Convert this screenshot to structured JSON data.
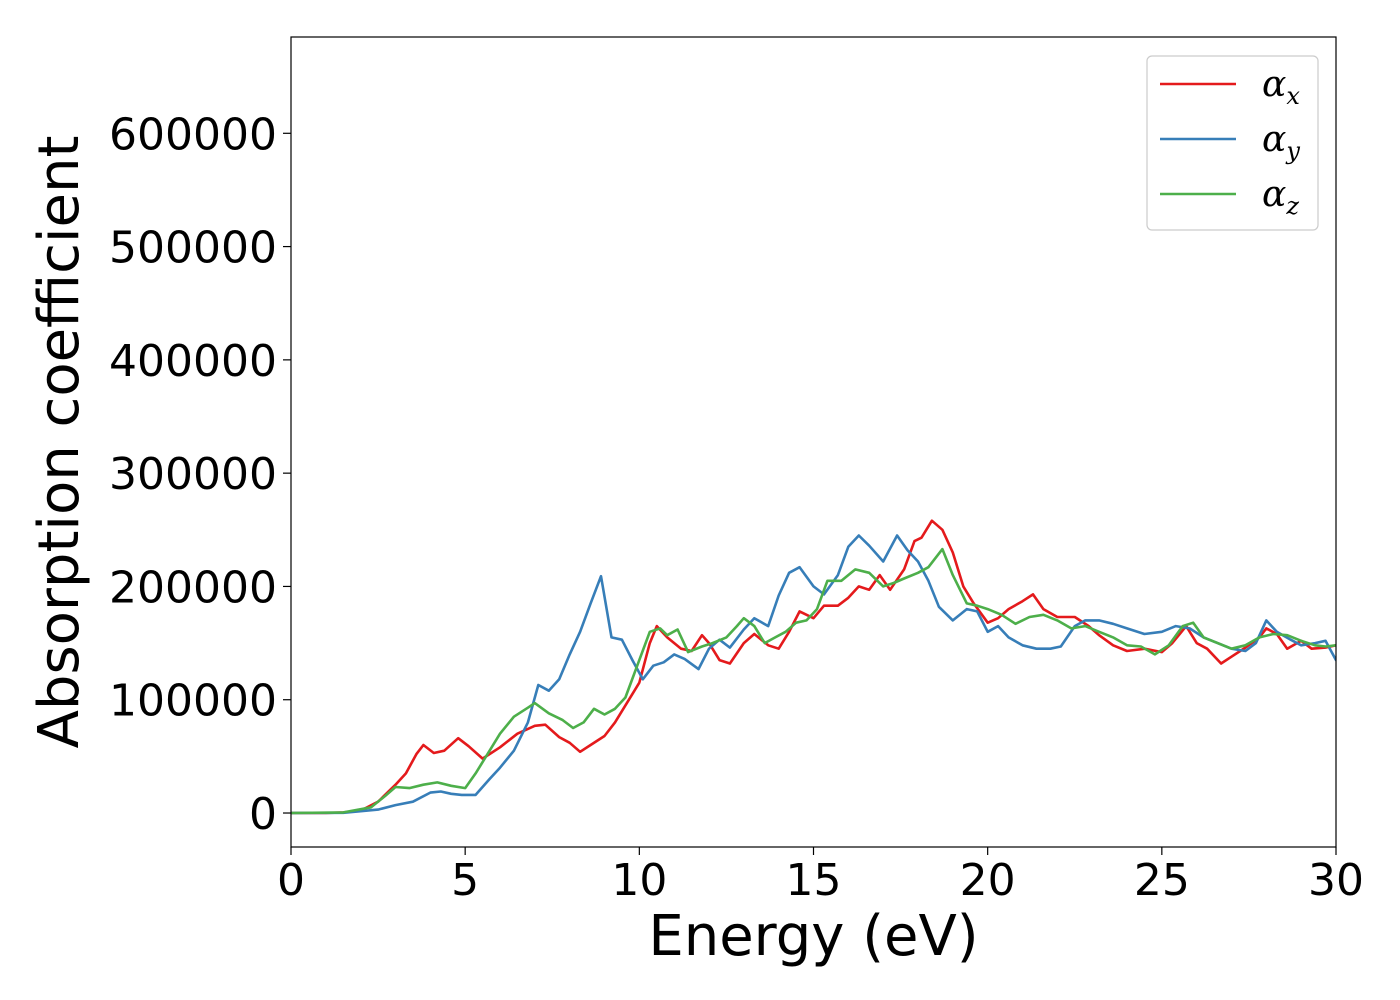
{
  "chart_data": {
    "type": "line",
    "xlabel": "Energy (eV)",
    "ylabel": "Absorption coefficient",
    "xlim": [
      0,
      30
    ],
    "ylim": [
      -30000,
      685000
    ],
    "xticks": [
      0,
      5,
      10,
      15,
      20,
      25,
      30
    ],
    "xtick_labels": [
      "0",
      "5",
      "10",
      "15",
      "20",
      "25",
      "30"
    ],
    "yticks": [
      0,
      100000,
      200000,
      300000,
      400000,
      500000,
      600000
    ],
    "ytick_labels": [
      "0",
      "100000",
      "200000",
      "300000",
      "400000",
      "500000",
      "600000"
    ],
    "grid": false,
    "legend_position": "top-right",
    "series": [
      {
        "name": "αx",
        "symbol": "α",
        "subscript": "x",
        "color": "#e41a1c",
        "points": [
          [
            0,
            0
          ],
          [
            1,
            0
          ],
          [
            1.5,
            500
          ],
          [
            2,
            2000
          ],
          [
            2.5,
            10000
          ],
          [
            3,
            25000
          ],
          [
            3.3,
            35000
          ],
          [
            3.6,
            52000
          ],
          [
            3.8,
            60000
          ],
          [
            4.1,
            53000
          ],
          [
            4.4,
            55000
          ],
          [
            4.8,
            66000
          ],
          [
            5.1,
            59000
          ],
          [
            5.5,
            48000
          ],
          [
            6,
            58000
          ],
          [
            6.5,
            70000
          ],
          [
            7,
            77000
          ],
          [
            7.3,
            78000
          ],
          [
            7.7,
            67000
          ],
          [
            8,
            62000
          ],
          [
            8.3,
            54000
          ],
          [
            8.6,
            60000
          ],
          [
            9,
            68000
          ],
          [
            9.3,
            80000
          ],
          [
            9.6,
            95000
          ],
          [
            10,
            115000
          ],
          [
            10.3,
            150000
          ],
          [
            10.5,
            165000
          ],
          [
            10.8,
            155000
          ],
          [
            11.2,
            145000
          ],
          [
            11.5,
            143000
          ],
          [
            11.8,
            157000
          ],
          [
            12,
            150000
          ],
          [
            12.3,
            135000
          ],
          [
            12.6,
            132000
          ],
          [
            13,
            150000
          ],
          [
            13.3,
            158000
          ],
          [
            13.7,
            148000
          ],
          [
            14,
            145000
          ],
          [
            14.3,
            160000
          ],
          [
            14.6,
            178000
          ],
          [
            15,
            172000
          ],
          [
            15.3,
            183000
          ],
          [
            15.7,
            183000
          ],
          [
            16,
            190000
          ],
          [
            16.3,
            200000
          ],
          [
            16.6,
            197000
          ],
          [
            16.9,
            210000
          ],
          [
            17.2,
            197000
          ],
          [
            17.6,
            215000
          ],
          [
            17.9,
            240000
          ],
          [
            18.1,
            243000
          ],
          [
            18.4,
            258000
          ],
          [
            18.7,
            250000
          ],
          [
            19,
            230000
          ],
          [
            19.3,
            200000
          ],
          [
            19.6,
            185000
          ],
          [
            20,
            168000
          ],
          [
            20.3,
            172000
          ],
          [
            20.6,
            180000
          ],
          [
            21,
            187000
          ],
          [
            21.3,
            193000
          ],
          [
            21.6,
            180000
          ],
          [
            22,
            173000
          ],
          [
            22.5,
            173000
          ],
          [
            22.9,
            165000
          ],
          [
            23.2,
            157000
          ],
          [
            23.6,
            148000
          ],
          [
            24,
            143000
          ],
          [
            24.5,
            145000
          ],
          [
            25,
            142000
          ],
          [
            25.3,
            150000
          ],
          [
            25.7,
            165000
          ],
          [
            26,
            150000
          ],
          [
            26.3,
            145000
          ],
          [
            26.7,
            132000
          ],
          [
            27,
            138000
          ],
          [
            27.4,
            146000
          ],
          [
            27.8,
            155000
          ],
          [
            28,
            163000
          ],
          [
            28.3,
            158000
          ],
          [
            28.6,
            145000
          ],
          [
            29,
            152000
          ],
          [
            29.3,
            145000
          ],
          [
            29.7,
            146000
          ],
          [
            30,
            148000
          ]
        ]
      },
      {
        "name": "αy",
        "symbol": "α",
        "subscript": "y",
        "color": "#377eb8",
        "points": [
          [
            0,
            0
          ],
          [
            1.5,
            200
          ],
          [
            2.5,
            3000
          ],
          [
            3,
            7000
          ],
          [
            3.5,
            10000
          ],
          [
            4,
            18000
          ],
          [
            4.3,
            19000
          ],
          [
            4.6,
            17000
          ],
          [
            4.9,
            16000
          ],
          [
            5.3,
            16000
          ],
          [
            5.7,
            30000
          ],
          [
            6,
            40000
          ],
          [
            6.4,
            55000
          ],
          [
            6.8,
            80000
          ],
          [
            7.1,
            113000
          ],
          [
            7.4,
            108000
          ],
          [
            7.7,
            118000
          ],
          [
            8,
            140000
          ],
          [
            8.3,
            160000
          ],
          [
            8.6,
            185000
          ],
          [
            8.9,
            209000
          ],
          [
            9.2,
            155000
          ],
          [
            9.5,
            153000
          ],
          [
            9.8,
            135000
          ],
          [
            10.1,
            118000
          ],
          [
            10.4,
            130000
          ],
          [
            10.7,
            133000
          ],
          [
            11,
            140000
          ],
          [
            11.3,
            136000
          ],
          [
            11.7,
            127000
          ],
          [
            12,
            145000
          ],
          [
            12.3,
            153000
          ],
          [
            12.6,
            146000
          ],
          [
            13,
            162000
          ],
          [
            13.3,
            172000
          ],
          [
            13.7,
            165000
          ],
          [
            14,
            192000
          ],
          [
            14.3,
            212000
          ],
          [
            14.6,
            217000
          ],
          [
            15,
            200000
          ],
          [
            15.3,
            193000
          ],
          [
            15.7,
            210000
          ],
          [
            16,
            235000
          ],
          [
            16.3,
            245000
          ],
          [
            16.6,
            236000
          ],
          [
            17,
            222000
          ],
          [
            17.4,
            245000
          ],
          [
            17.7,
            232000
          ],
          [
            18,
            222000
          ],
          [
            18.3,
            205000
          ],
          [
            18.6,
            182000
          ],
          [
            19,
            170000
          ],
          [
            19.4,
            180000
          ],
          [
            19.7,
            178000
          ],
          [
            20,
            160000
          ],
          [
            20.3,
            165000
          ],
          [
            20.6,
            155000
          ],
          [
            21,
            148000
          ],
          [
            21.4,
            145000
          ],
          [
            21.8,
            145000
          ],
          [
            22.1,
            147000
          ],
          [
            22.5,
            165000
          ],
          [
            22.8,
            170000
          ],
          [
            23.2,
            170000
          ],
          [
            23.6,
            167000
          ],
          [
            24,
            163000
          ],
          [
            24.5,
            158000
          ],
          [
            25,
            160000
          ],
          [
            25.4,
            165000
          ],
          [
            25.8,
            163000
          ],
          [
            26.2,
            155000
          ],
          [
            26.6,
            150000
          ],
          [
            27,
            145000
          ],
          [
            27.4,
            143000
          ],
          [
            27.7,
            150000
          ],
          [
            28,
            170000
          ],
          [
            28.3,
            160000
          ],
          [
            28.7,
            153000
          ],
          [
            29,
            148000
          ],
          [
            29.4,
            150000
          ],
          [
            29.7,
            152000
          ],
          [
            30,
            135000
          ]
        ]
      },
      {
        "name": "αz",
        "symbol": "α",
        "subscript": "z",
        "color": "#4daf4a",
        "points": [
          [
            0,
            0
          ],
          [
            1.5,
            500
          ],
          [
            2.3,
            5000
          ],
          [
            2.7,
            15000
          ],
          [
            3,
            23000
          ],
          [
            3.4,
            22000
          ],
          [
            3.8,
            25000
          ],
          [
            4.2,
            27000
          ],
          [
            4.6,
            24000
          ],
          [
            5,
            22000
          ],
          [
            5.3,
            35000
          ],
          [
            5.7,
            55000
          ],
          [
            6,
            70000
          ],
          [
            6.4,
            85000
          ],
          [
            6.8,
            93000
          ],
          [
            7,
            97000
          ],
          [
            7.4,
            88000
          ],
          [
            7.8,
            82000
          ],
          [
            8.1,
            75000
          ],
          [
            8.4,
            80000
          ],
          [
            8.7,
            92000
          ],
          [
            9,
            87000
          ],
          [
            9.3,
            92000
          ],
          [
            9.6,
            102000
          ],
          [
            10,
            135000
          ],
          [
            10.3,
            160000
          ],
          [
            10.6,
            163000
          ],
          [
            10.8,
            157000
          ],
          [
            11.1,
            162000
          ],
          [
            11.4,
            142000
          ],
          [
            11.8,
            147000
          ],
          [
            12.1,
            150000
          ],
          [
            12.5,
            155000
          ],
          [
            12.8,
            165000
          ],
          [
            13,
            172000
          ],
          [
            13.3,
            165000
          ],
          [
            13.6,
            150000
          ],
          [
            13.9,
            155000
          ],
          [
            14.2,
            160000
          ],
          [
            14.5,
            168000
          ],
          [
            14.8,
            170000
          ],
          [
            15.1,
            180000
          ],
          [
            15.4,
            205000
          ],
          [
            15.8,
            205000
          ],
          [
            16.2,
            215000
          ],
          [
            16.6,
            212000
          ],
          [
            17,
            200000
          ],
          [
            17.3,
            203000
          ],
          [
            17.6,
            207000
          ],
          [
            18,
            212000
          ],
          [
            18.3,
            217000
          ],
          [
            18.7,
            233000
          ],
          [
            19,
            210000
          ],
          [
            19.4,
            185000
          ],
          [
            19.7,
            183000
          ],
          [
            20,
            180000
          ],
          [
            20.4,
            175000
          ],
          [
            20.8,
            167000
          ],
          [
            21.2,
            173000
          ],
          [
            21.6,
            175000
          ],
          [
            22,
            170000
          ],
          [
            22.4,
            163000
          ],
          [
            22.8,
            165000
          ],
          [
            23.2,
            160000
          ],
          [
            23.6,
            155000
          ],
          [
            24,
            148000
          ],
          [
            24.4,
            147000
          ],
          [
            24.8,
            140000
          ],
          [
            25.2,
            148000
          ],
          [
            25.6,
            165000
          ],
          [
            25.9,
            168000
          ],
          [
            26.2,
            155000
          ],
          [
            26.6,
            150000
          ],
          [
            27,
            145000
          ],
          [
            27.4,
            148000
          ],
          [
            27.8,
            155000
          ],
          [
            28.2,
            158000
          ],
          [
            28.6,
            157000
          ],
          [
            29,
            152000
          ],
          [
            29.4,
            148000
          ],
          [
            29.7,
            147000
          ],
          [
            30,
            148000
          ]
        ]
      }
    ]
  }
}
